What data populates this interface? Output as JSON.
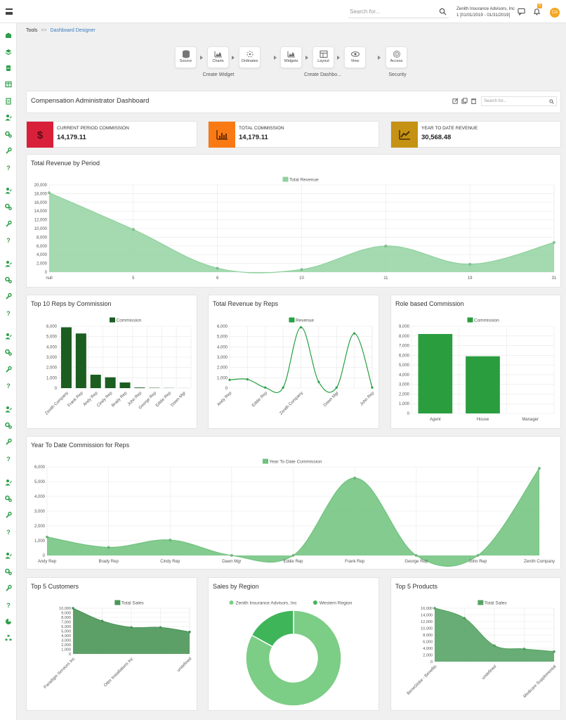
{
  "topbar": {
    "search_placeholder": "Search for...",
    "org_name": "Zenith Insurance Advisors, Inc",
    "period": "1 [01/01/2019 - 01/31/2019]",
    "notif_count": "6",
    "avatar_initials": "CA"
  },
  "breadcrumb": {
    "root": "Tools",
    "separator": ">>",
    "current": "Dashboard Designer"
  },
  "wizard": {
    "steps": [
      "Source",
      "Charts",
      "Ordinates",
      "Widgets",
      "Layout",
      "View",
      "Access"
    ],
    "groups": [
      "Create Widget",
      "Create Dashbo...",
      "Security"
    ]
  },
  "dashboard": {
    "title": "Compensation Administrator Dashboard",
    "search_placeholder": "Search for..."
  },
  "kpis": [
    {
      "label": "CURRENT PERIOD COMMISSION",
      "value": "14,179.11",
      "color": "#d8203a",
      "icon": "dollar-icon"
    },
    {
      "label": "TOTAL COMMISSION",
      "value": "14,179.11",
      "color": "#f97a14",
      "icon": "bar-chart-icon"
    },
    {
      "label": "YEAR TO DATE REVENUE",
      "value": "30,568.48",
      "color": "#c69214",
      "icon": "trend-icon"
    }
  ],
  "chart_data": [
    {
      "id": "revenue_period",
      "type": "area",
      "title": "Total Revenue by Period",
      "categories": [
        "null",
        "5",
        "6",
        "10",
        "11",
        "19",
        "31"
      ],
      "series": [
        {
          "name": "Total Revenue",
          "values": [
            18200,
            9800,
            900,
            600,
            6000,
            1800,
            6800
          ]
        }
      ],
      "ylim": [
        0,
        20000
      ],
      "yticks": [
        "0",
        "2,000",
        "4,000",
        "6,000",
        "8,000",
        "10,000",
        "12,000",
        "14,000",
        "16,000",
        "18,000",
        "20,000"
      ],
      "color": "#8fd19e"
    },
    {
      "id": "top10",
      "type": "bar",
      "title": "Top 10 Reps by Commission",
      "categories": [
        "Zenith Company",
        "Frank Rep",
        "Andy Rep",
        "Cindy Rep",
        "Brady Rep",
        "John Rep",
        "George Rep",
        "Eddie Rep",
        "Dawn Mgr"
      ],
      "series": [
        {
          "name": "Commission",
          "values": [
            5900,
            5300,
            1300,
            1050,
            550,
            60,
            30,
            15,
            5
          ]
        }
      ],
      "ylim": [
        0,
        6000
      ],
      "yticks": [
        "0",
        "1,000",
        "2,000",
        "3,000",
        "4,000",
        "5,000",
        "6,000"
      ],
      "color": "#1b5e20"
    },
    {
      "id": "revenue_reps",
      "type": "line",
      "title": "Total Revenue by Reps",
      "categories": [
        "Andy Rep",
        "",
        "Eddie Rep",
        "",
        "Zenith Company",
        "",
        "Dawn Mgr",
        "",
        "John Rep"
      ],
      "series": [
        {
          "name": "Revenue",
          "values": [
            800,
            850,
            50,
            50,
            5900,
            600,
            50,
            5300,
            50
          ]
        }
      ],
      "ylim": [
        0,
        6000
      ],
      "yticks": [
        "0",
        "1,000",
        "2,000",
        "3,000",
        "4,000",
        "5,000",
        "6,000"
      ],
      "color": "#27a044"
    },
    {
      "id": "role",
      "type": "bar",
      "title": "Role based Commission",
      "categories": [
        "Agent",
        "House",
        "Manager"
      ],
      "series": [
        {
          "name": "Commission",
          "values": [
            8200,
            5900,
            0
          ]
        }
      ],
      "ylim": [
        0,
        9000
      ],
      "yticks": [
        "0",
        "1,000",
        "2,000",
        "3,000",
        "4,000",
        "5,000",
        "6,000",
        "7,000",
        "8,000",
        "9,000"
      ],
      "color": "#2a9d3f"
    },
    {
      "id": "ytd",
      "type": "area",
      "title": "Year To Date Commission for Reps",
      "categories": [
        "Andy Rep",
        "Brady Rep",
        "Cindy Rep",
        "Dawn Mgr",
        "Eddie Rep",
        "Frank Rep",
        "George Rep",
        "John Rep",
        "Zenith Company"
      ],
      "series": [
        {
          "name": "Year To Date Commission",
          "values": [
            1250,
            550,
            1050,
            0,
            0,
            5250,
            0,
            0,
            5900
          ]
        }
      ],
      "ylim": [
        0,
        6000
      ],
      "yticks": [
        "0",
        "1,000",
        "2,000",
        "3,000",
        "4,000",
        "5,000",
        "6,000"
      ],
      "color": "#6fc27d"
    },
    {
      "id": "customers",
      "type": "area",
      "title": "Top 5 Customers",
      "categories": [
        "Paradigm Services Inc",
        "",
        "Otter Installations Inc",
        "",
        "undefined"
      ],
      "series": [
        {
          "name": "Total Sales",
          "values": [
            10000,
            7200,
            5800,
            5800,
            4800
          ]
        }
      ],
      "ylim": [
        0,
        10000
      ],
      "yticks": [
        "0",
        "1,000",
        "2,000",
        "3,000",
        "4,000",
        "5,000",
        "6,000",
        "7,000",
        "8,000",
        "9,000",
        "10,000"
      ],
      "color": "#4a9658"
    },
    {
      "id": "region",
      "type": "pie",
      "title": "Sales by Region",
      "slices": [
        {
          "name": "Zenith Insurance Advisors, Inc",
          "value": 83,
          "color": "#7ccd86"
        },
        {
          "name": "Western Region",
          "value": 17,
          "color": "#3fb55a"
        }
      ]
    },
    {
      "id": "products",
      "type": "area",
      "title": "Top 5 Products",
      "categories": [
        "BeneGlobe - Benefits",
        "",
        "undefined",
        "",
        "Medicare Supplemental"
      ],
      "series": [
        {
          "name": "Total Sales",
          "values": [
            16000,
            13000,
            4800,
            3800,
            3000
          ]
        }
      ],
      "ylim": [
        0,
        16000
      ],
      "yticks": [
        "0",
        "2,000",
        "4,000",
        "6,000",
        "8,000",
        "10,000",
        "12,000",
        "14,000",
        "16,000"
      ],
      "color": "#58a466"
    }
  ]
}
